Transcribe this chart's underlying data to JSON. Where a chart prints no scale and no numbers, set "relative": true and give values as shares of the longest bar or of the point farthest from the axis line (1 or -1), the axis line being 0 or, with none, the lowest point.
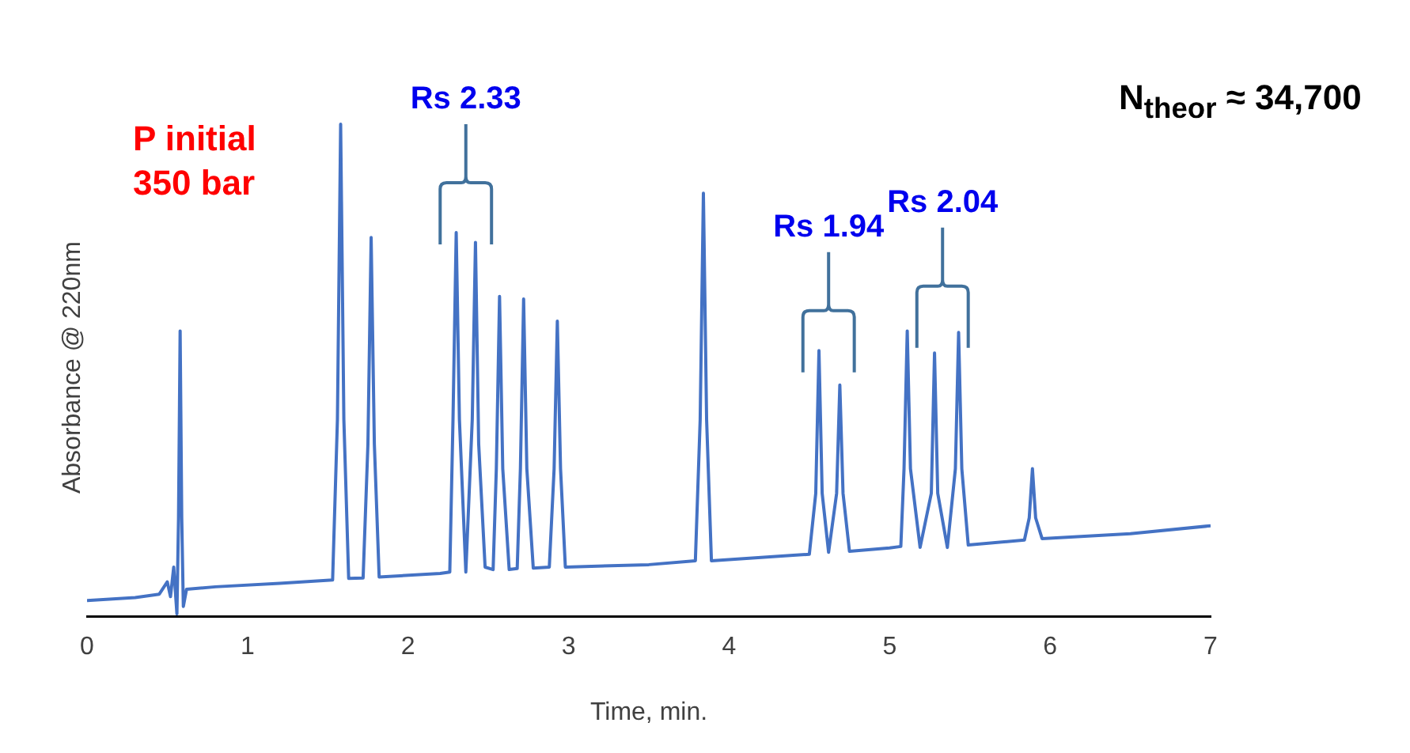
{
  "chart_data": {
    "type": "line",
    "relative": true,
    "xlabel": "Time, min.",
    "ylabel": "Absorbance @ 220nm",
    "xlim": [
      0,
      7
    ],
    "xticks": [
      0,
      1,
      2,
      3,
      4,
      5,
      6,
      7
    ],
    "grid": false,
    "legend": false,
    "tick_labels": "x",
    "marker": "none",
    "line_style": "solid",
    "annotations": [
      "P initial 350 bar",
      "N$_{theor}$ ≈ 34,700",
      "Rs 2.33",
      "Rs 1.94",
      "Rs 2.04"
    ],
    "series": [
      {
        "color": "#4472c4",
        "x": [
          0,
          0.3,
          0.45,
          0.5,
          0.52,
          0.54,
          0.56,
          0.57,
          0.58,
          0.59,
          0.6,
          0.62,
          0.8,
          1.2,
          1.53,
          1.56,
          1.58,
          1.6,
          1.63,
          1.72,
          1.75,
          1.77,
          1.79,
          1.82,
          2.2,
          2.26,
          2.28,
          2.3,
          2.32,
          2.36,
          2.4,
          2.42,
          2.44,
          2.48,
          2.53,
          2.55,
          2.57,
          2.59,
          2.63,
          2.68,
          2.7,
          2.72,
          2.74,
          2.78,
          2.88,
          2.91,
          2.93,
          2.95,
          2.98,
          3.5,
          3.79,
          3.82,
          3.84,
          3.86,
          3.89,
          4.4,
          4.5,
          4.54,
          4.56,
          4.58,
          4.62,
          4.67,
          4.69,
          4.71,
          4.75,
          5.0,
          5.07,
          5.09,
          5.11,
          5.13,
          5.19,
          5.26,
          5.28,
          5.3,
          5.36,
          5.41,
          5.43,
          5.45,
          5.49,
          5.84,
          5.87,
          5.89,
          5.91,
          5.95,
          6.5,
          7.0
        ],
        "values": [
          0.032,
          0.038,
          0.045,
          0.07,
          0.04,
          0.1,
          0.005,
          0.2,
          0.58,
          0.2,
          0.02,
          0.055,
          0.06,
          0.067,
          0.074,
          0.4,
          1.0,
          0.4,
          0.077,
          0.078,
          0.35,
          0.77,
          0.35,
          0.08,
          0.087,
          0.09,
          0.4,
          0.78,
          0.4,
          0.09,
          0.4,
          0.76,
          0.35,
          0.1,
          0.095,
          0.3,
          0.65,
          0.3,
          0.095,
          0.097,
          0.3,
          0.645,
          0.3,
          0.098,
          0.1,
          0.3,
          0.6,
          0.3,
          0.1,
          0.105,
          0.113,
          0.4,
          0.86,
          0.4,
          0.113,
          0.124,
          0.126,
          0.25,
          0.54,
          0.25,
          0.13,
          0.25,
          0.47,
          0.25,
          0.132,
          0.139,
          0.142,
          0.3,
          0.58,
          0.3,
          0.14,
          0.25,
          0.535,
          0.25,
          0.14,
          0.3,
          0.577,
          0.3,
          0.145,
          0.155,
          0.2,
          0.3,
          0.2,
          0.158,
          0.168,
          0.184
        ]
      }
    ]
  }
}
